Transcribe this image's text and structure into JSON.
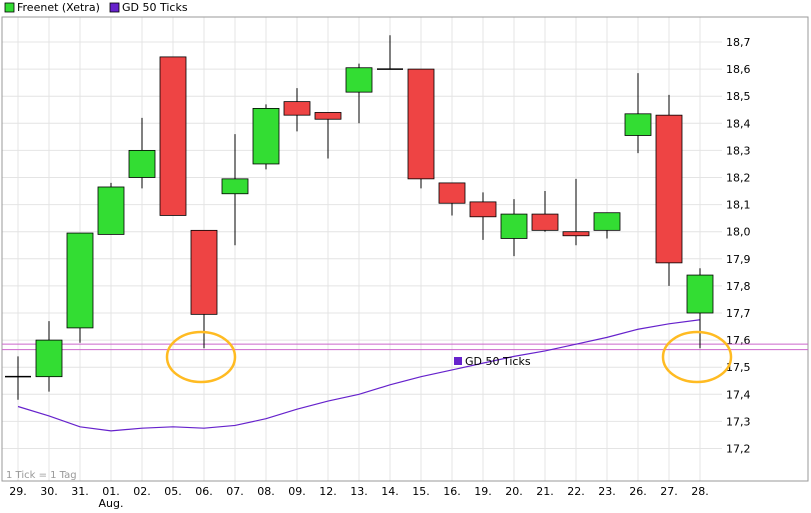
{
  "chart_data": {
    "type": "candlestick",
    "legend": [
      {
        "label": "Freenet (Xetra)",
        "color": "#33dd33"
      },
      {
        "label": "GD 50 Ticks",
        "color": "#6622cc"
      }
    ],
    "scale_note": "1 Tick = 1 Tag",
    "indicator_label": "GD 50 Ticks",
    "x_labels": [
      "29.",
      "30.",
      "31.",
      "01.",
      "02.",
      "05.",
      "06.",
      "07.",
      "08.",
      "09.",
      "12.",
      "13.",
      "14.",
      "15.",
      "16.",
      "19.",
      "20.",
      "21.",
      "22.",
      "23.",
      "26.",
      "27.",
      "28."
    ],
    "x_sublabels": {
      "3": "Aug."
    },
    "y_ticks": [
      "17,2",
      "17,3",
      "17,4",
      "17,5",
      "17,6",
      "17,7",
      "17,8",
      "17,9",
      "18,0",
      "18,1",
      "18,2",
      "18,3",
      "18,4",
      "18,5",
      "18,6",
      "18,7"
    ],
    "ylim": [
      17.1,
      18.75
    ],
    "up_color": "#33dd33",
    "down_color": "#ee4444",
    "candles": [
      {
        "open": 17.465,
        "high": 17.54,
        "low": 17.38,
        "close": 17.465
      },
      {
        "open": 17.465,
        "high": 17.67,
        "low": 17.41,
        "close": 17.6
      },
      {
        "open": 17.645,
        "high": 17.99,
        "low": 17.59,
        "close": 17.995
      },
      {
        "open": 17.99,
        "high": 18.18,
        "low": 17.99,
        "close": 18.165
      },
      {
        "open": 18.2,
        "high": 18.42,
        "low": 18.16,
        "close": 18.3
      },
      {
        "open": 18.645,
        "high": 18.645,
        "low": 18.06,
        "close": 18.06
      },
      {
        "open": 18.005,
        "high": 18.005,
        "low": 17.57,
        "close": 17.695
      },
      {
        "open": 18.14,
        "high": 18.36,
        "low": 17.95,
        "close": 18.195
      },
      {
        "open": 18.25,
        "high": 18.47,
        "low": 18.23,
        "close": 18.455
      },
      {
        "open": 18.48,
        "high": 18.53,
        "low": 18.37,
        "close": 18.43
      },
      {
        "open": 18.44,
        "high": 18.44,
        "low": 18.27,
        "close": 18.415
      },
      {
        "open": 18.515,
        "high": 18.62,
        "low": 18.4,
        "close": 18.605
      },
      {
        "open": 18.6,
        "high": 18.725,
        "low": 18.6,
        "close": 18.6
      },
      {
        "open": 18.6,
        "high": 18.6,
        "low": 18.16,
        "close": 18.195
      },
      {
        "open": 18.18,
        "high": 18.18,
        "low": 18.06,
        "close": 18.105
      },
      {
        "open": 18.11,
        "high": 18.145,
        "low": 17.97,
        "close": 18.055
      },
      {
        "open": 17.975,
        "high": 18.12,
        "low": 17.91,
        "close": 18.065
      },
      {
        "open": 18.065,
        "high": 18.15,
        "low": 18.0,
        "close": 18.005
      },
      {
        "open": 18.0,
        "high": 18.195,
        "low": 17.95,
        "close": 17.985
      },
      {
        "open": 18.005,
        "high": 18.07,
        "low": 17.975,
        "close": 18.07
      },
      {
        "open": 18.355,
        "high": 18.585,
        "low": 18.29,
        "close": 18.435
      },
      {
        "open": 18.43,
        "high": 18.505,
        "low": 17.8,
        "close": 17.885
      },
      {
        "open": 17.7,
        "high": 17.865,
        "low": 17.57,
        "close": 17.84
      }
    ],
    "gd50": [
      17.355,
      17.32,
      17.28,
      17.265,
      17.275,
      17.28,
      17.275,
      17.285,
      17.31,
      17.345,
      17.375,
      17.4,
      17.435,
      17.465,
      17.49,
      17.515,
      17.54,
      17.56,
      17.585,
      17.61,
      17.64,
      17.66,
      17.675
    ],
    "hlines": [
      17.585,
      17.565
    ],
    "highlight_ellipses_at": [
      6,
      22
    ],
    "highlight_color": "#ffbb22",
    "indicator_color": "#6622cc",
    "hline_color": "#cc66cc",
    "grid": true
  }
}
